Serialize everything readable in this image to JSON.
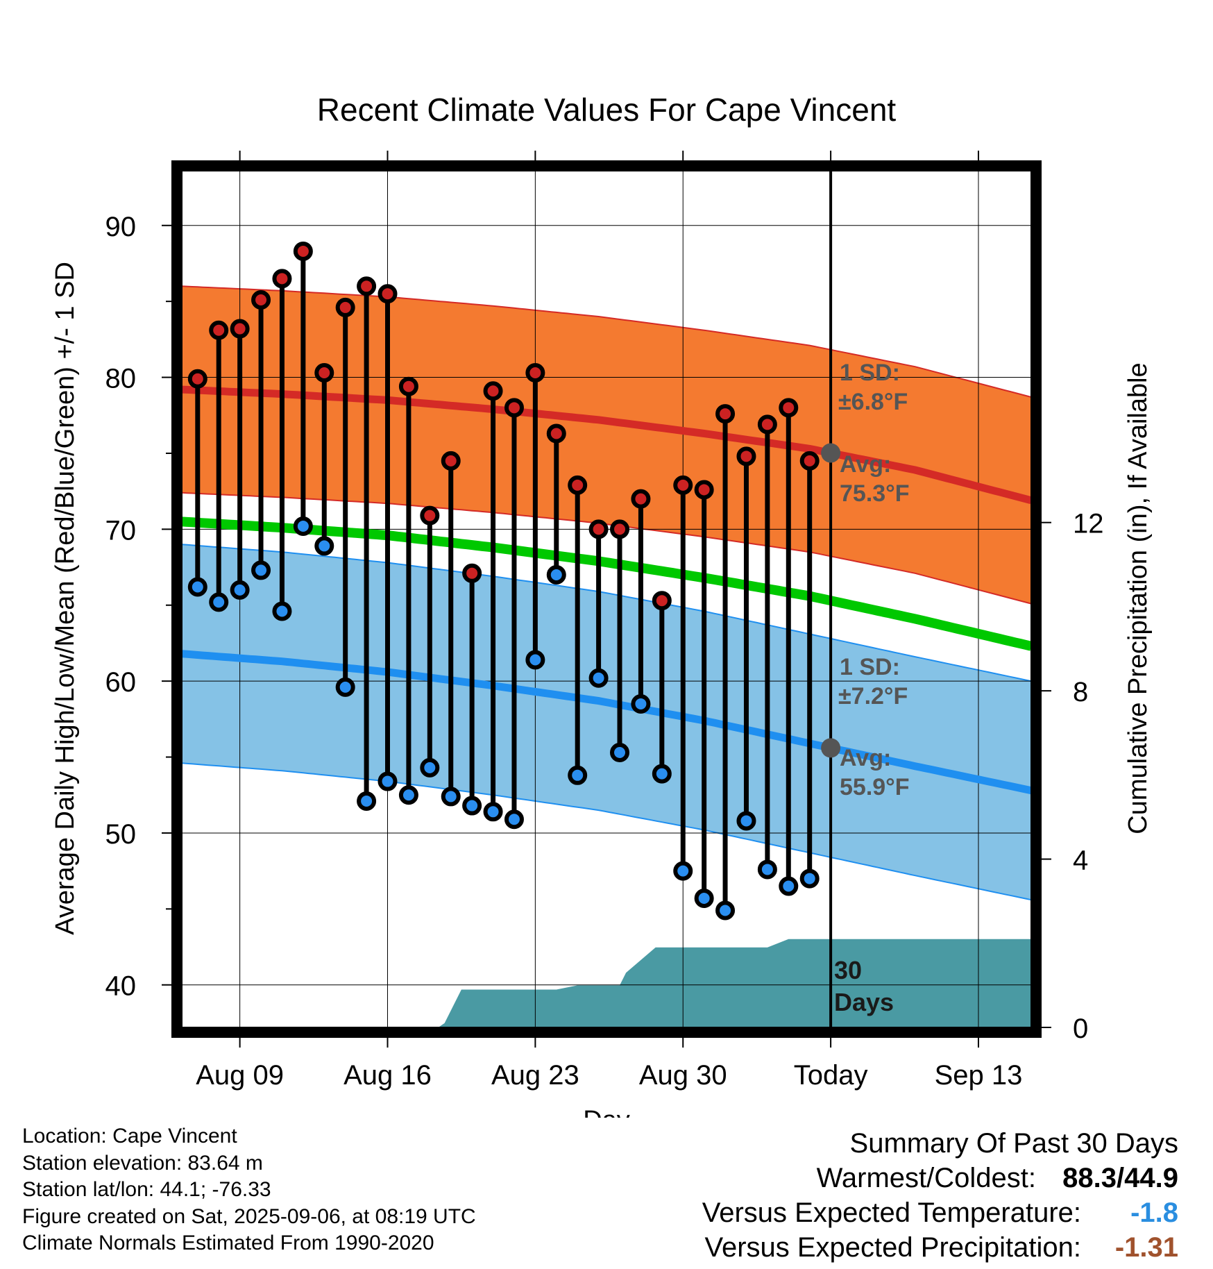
{
  "colors": {
    "high_band": "#f47a30",
    "high_line": "#d42a26",
    "low_band": "#85c2e6",
    "low_line": "#1f8ff0",
    "mean_line": "#00c800",
    "precip_fill": "#4a9aa3",
    "marker_gray": "#555555",
    "summary_temp_value": "#2a8ee0",
    "summary_precip_value": "#a0522d"
  },
  "chart_data": {
    "type": "line",
    "title": "Recent Climate Values For Cape Vincent",
    "xlabel": "Day",
    "ylabel": "Average Daily High/Low/Mean (Red/Blue/Green) +/- 1 SD",
    "y2label": "Cumulative Precipitation (in), If Available",
    "x_tick_labels": [
      "Aug 09",
      "Aug 16",
      "Aug 23",
      "Aug 30",
      "Today",
      "Sep 13"
    ],
    "x_tick_days": [
      3,
      10,
      17,
      24,
      31,
      38
    ],
    "x_range_days": [
      0.25,
      40.5
    ],
    "today_day": 31,
    "ylim": [
      37.2,
      93.6
    ],
    "y_ticks": [
      40,
      50,
      60,
      70,
      80,
      90
    ],
    "y2lim": [
      0,
      20.36
    ],
    "y2_ticks": [
      0,
      4,
      8,
      12
    ],
    "grid": true,
    "days": [
      1,
      2,
      3,
      4,
      5,
      6,
      7,
      8,
      9,
      10,
      11,
      12,
      13,
      14,
      15,
      16,
      17,
      18,
      19,
      20,
      21,
      22,
      23,
      24,
      25,
      26,
      27,
      28,
      29,
      30
    ],
    "observed_high": [
      79.9,
      83.1,
      83.2,
      85.1,
      86.5,
      88.3,
      80.3,
      84.6,
      86.0,
      85.5,
      79.4,
      70.9,
      74.5,
      67.1,
      79.1,
      78.0,
      80.3,
      76.3,
      72.9,
      70.0,
      70.0,
      72.0,
      65.3,
      72.9,
      72.6,
      77.6,
      74.8,
      76.9,
      78.0,
      74.5
    ],
    "observed_low": [
      66.2,
      65.2,
      66.0,
      67.3,
      64.6,
      70.2,
      68.9,
      59.6,
      52.1,
      53.4,
      52.5,
      54.3,
      52.4,
      51.8,
      51.4,
      50.9,
      61.4,
      67.0,
      53.8,
      60.2,
      55.3,
      58.5,
      53.9,
      47.5,
      45.7,
      44.9,
      50.8,
      47.6,
      46.5,
      47.0
    ],
    "normal_days": [
      0.25,
      5,
      10,
      15,
      20,
      25,
      30,
      35,
      40.5
    ],
    "normal_high": [
      79.2,
      78.9,
      78.5,
      77.9,
      77.2,
      76.3,
      75.3,
      73.9,
      71.9
    ],
    "normal_low": [
      61.8,
      61.3,
      60.6,
      59.7,
      58.7,
      57.4,
      55.9,
      54.4,
      52.8
    ],
    "normal_mean": [
      70.5,
      70.1,
      69.6,
      68.8,
      67.9,
      66.8,
      65.6,
      64.1,
      62.3
    ],
    "high_sd": 6.8,
    "low_sd": 7.2,
    "precip_days": [
      0.25,
      12.4,
      12.7,
      13.5,
      18.0,
      19.0,
      21.0,
      21.3,
      22.0,
      22.7,
      24.0,
      28.0,
      29.0,
      30.0,
      31.0,
      40.5
    ],
    "precip_cum": [
      0,
      0,
      0.1,
      0.9,
      0.9,
      1.0,
      1.0,
      1.3,
      1.6,
      1.9,
      1.9,
      1.9,
      2.1,
      2.1,
      2.1,
      2.1
    ],
    "annotations": {
      "high_sd_label": "1 SD:",
      "high_sd_value": "±6.8°F",
      "high_avg_label": "Avg:",
      "high_avg_value": "75.3°F",
      "low_sd_label": "1 SD:",
      "low_sd_value": "±7.2°F",
      "low_avg_label": "Avg:",
      "low_avg_value": "55.9°F",
      "window_number": "30",
      "window_unit": "Days"
    }
  },
  "footer": {
    "location": "Location: Cape Vincent",
    "elevation": "Station elevation: 83.64 m",
    "latlon": "Station lat/lon: 44.1; -76.33",
    "created": "Figure created on Sat, 2025-09-06, at 08:19 UTC",
    "normals": "Climate Normals Estimated From 1990-2020"
  },
  "summary": {
    "title": "Summary Of Past 30 Days",
    "warmest_coldest_label": "Warmest/Coldest:",
    "warmest_coldest_value": "88.3/44.9",
    "temp_label": "Versus Expected Temperature:",
    "temp_value": "-1.8",
    "precip_label": "Versus Expected Precipitation:",
    "precip_value": "-1.31"
  }
}
